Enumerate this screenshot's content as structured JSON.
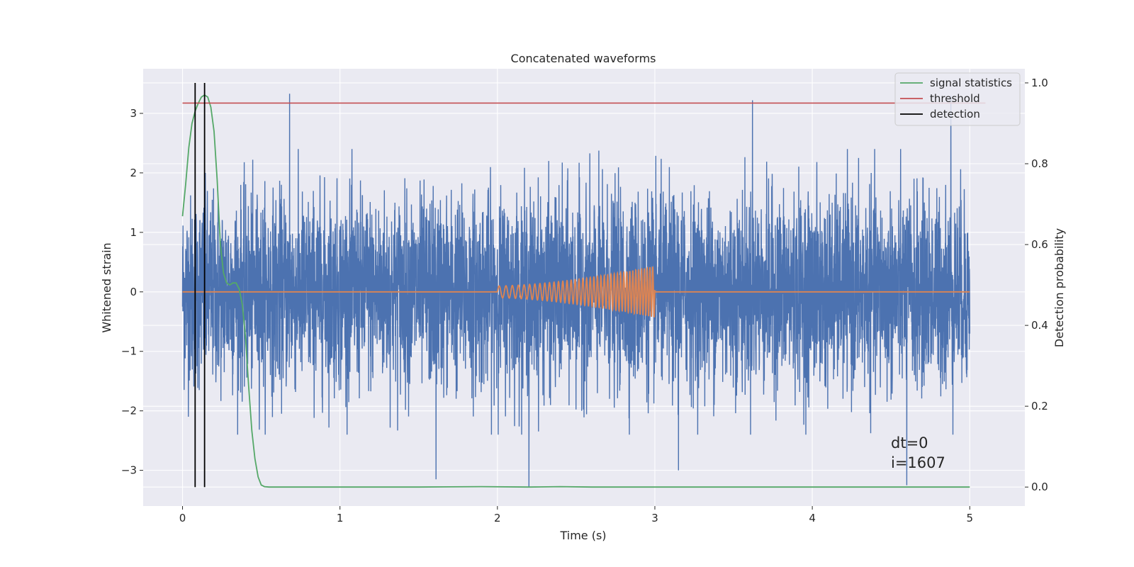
{
  "chart_data": {
    "type": "line",
    "title": "Concatenated waveforms",
    "xlabel": "Time (s)",
    "ylabel": "Whitened strain",
    "y2label": "Detection probability",
    "xlim": [
      -0.25,
      5.35
    ],
    "ylim": [
      -3.6,
      3.75
    ],
    "y2lim": [
      -0.047,
      1.035
    ],
    "xticks": [
      0,
      1,
      2,
      3,
      4,
      5
    ],
    "yticks": [
      -3,
      -2,
      -1,
      0,
      1,
      2,
      3
    ],
    "y2ticks": [
      0.0,
      0.2,
      0.4,
      0.6,
      0.8,
      1.0
    ],
    "xtick_labels": [
      "0",
      "1",
      "2",
      "3",
      "4",
      "5"
    ],
    "ytick_labels": [
      "−3",
      "−2",
      "−1",
      "0",
      "1",
      "2",
      "3"
    ],
    "y2tick_labels": [
      "0.0",
      "0.2",
      "0.4",
      "0.6",
      "0.8",
      "1.0"
    ],
    "grid": true,
    "legend_position": "top-right",
    "colors": {
      "background": "#eaeaf2",
      "grid": "#ffffff",
      "noise": "#4c72b0",
      "injected": "#dd8452",
      "signal_statistics": "#55a868",
      "threshold": "#c44e52",
      "detection": "#000000"
    },
    "noise": {
      "x_range": [
        0,
        5
      ],
      "approx_amplitude": 1.4,
      "notable_peaks": [
        {
          "x": 0.68,
          "y": 3.33
        },
        {
          "x": 3.62,
          "y": 3.22
        },
        {
          "x": 4.88,
          "y": 3.3
        },
        {
          "x": 2.2,
          "y": -3.28
        },
        {
          "x": 4.6,
          "y": -3.25
        },
        {
          "x": 1.61,
          "y": -3.15
        },
        {
          "x": 3.15,
          "y": -3.0
        }
      ]
    },
    "injected_signal": {
      "x_range": [
        2.0,
        3.0
      ],
      "start_amplitude": 0.1,
      "end_amplitude": 0.43
    },
    "series": [
      {
        "name": "signal statistics",
        "axis": "right",
        "x": [
          0,
          0.02,
          0.04,
          0.06,
          0.08,
          0.1,
          0.12,
          0.14,
          0.16,
          0.18,
          0.2,
          0.22,
          0.24,
          0.26,
          0.28,
          0.3,
          0.32,
          0.34,
          0.36,
          0.38,
          0.4,
          0.42,
          0.44,
          0.46,
          0.48,
          0.5,
          0.52,
          0.55,
          0.6,
          1.0,
          1.5,
          1.9,
          2.2,
          2.4,
          2.6,
          3.0,
          3.5,
          4.0,
          4.5,
          5.0
        ],
        "values": [
          0.67,
          0.75,
          0.84,
          0.9,
          0.93,
          0.95,
          0.965,
          0.97,
          0.965,
          0.94,
          0.88,
          0.76,
          0.6,
          0.53,
          0.505,
          0.5,
          0.505,
          0.505,
          0.49,
          0.45,
          0.37,
          0.25,
          0.14,
          0.07,
          0.025,
          0.005,
          0.001,
          0.0,
          0.0,
          0.0,
          0.0,
          0.001,
          0.0,
          0.001,
          0.0,
          0.0,
          0.0,
          0.0,
          0.0,
          0.0
        ]
      },
      {
        "name": "threshold",
        "axis": "right",
        "x": [
          0,
          5.1
        ],
        "values": [
          0.95,
          0.95
        ]
      },
      {
        "name": "detection",
        "axis": "right",
        "x": [
          0.08,
          0.14
        ],
        "y_range": [
          0.0,
          1.0
        ]
      }
    ],
    "annotations": [
      "dt=0",
      "i=1607"
    ]
  }
}
